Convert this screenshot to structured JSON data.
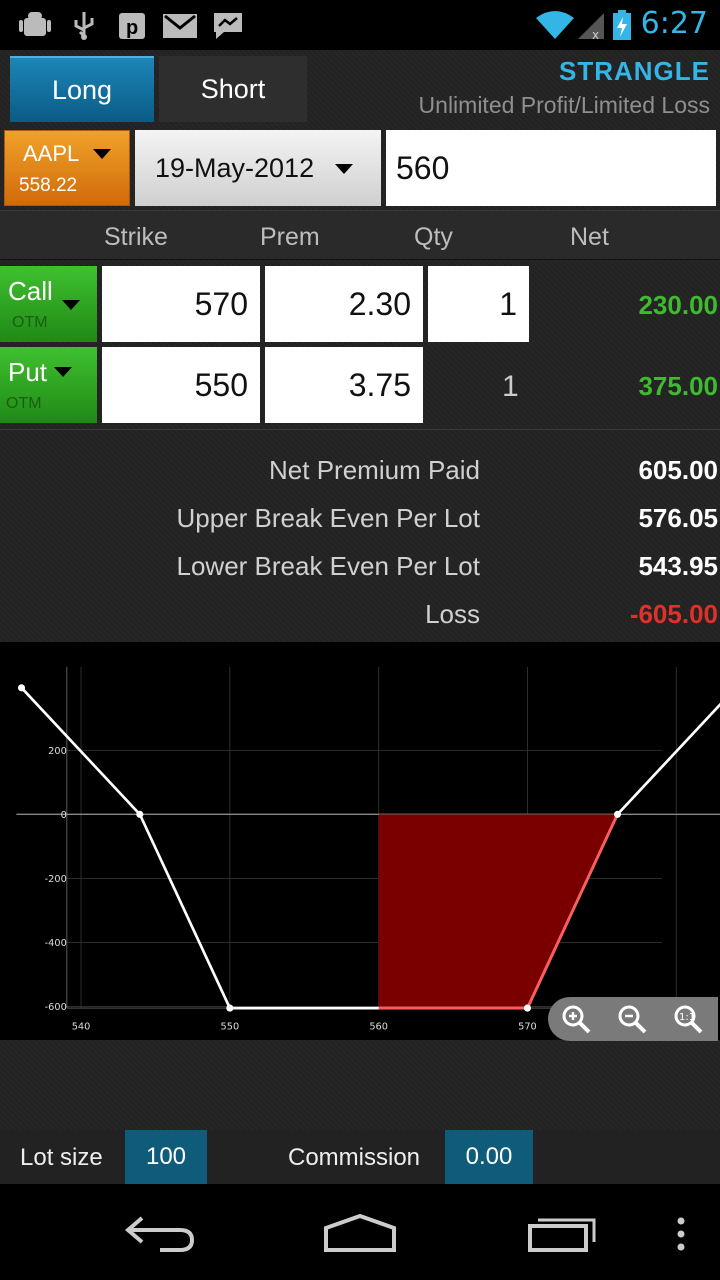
{
  "statusbar": {
    "time": "6:27",
    "icons": [
      "android-debug-icon",
      "usb-icon",
      "pushbullet-icon",
      "gmail-icon",
      "messenger-icon",
      "wifi-icon",
      "signal-icon",
      "battery-charging-icon"
    ]
  },
  "tabs": [
    {
      "label": "Long",
      "selected": true
    },
    {
      "label": "Short",
      "selected": false
    }
  ],
  "strategy": {
    "name": "STRANGLE",
    "description": "Unlimited Profit/Limited Loss"
  },
  "symbol": {
    "ticker": "AAPL",
    "price": "558.22"
  },
  "expiry": "19-May-2012",
  "underlying_price": "560",
  "columns": [
    "Strike",
    "Prem",
    "Qty",
    "Net"
  ],
  "legs": [
    {
      "type": "Call",
      "moneyness": "OTM",
      "strike": "570",
      "premium": "2.30",
      "qty": "1",
      "net": "230.00"
    },
    {
      "type": "Put",
      "moneyness": "OTM",
      "strike": "550",
      "premium": "3.75",
      "qty": "1",
      "net": "375.00"
    }
  ],
  "summary": [
    {
      "label": "Net Premium Paid",
      "value": "605.00"
    },
    {
      "label": "Upper Break Even Per Lot",
      "value": "576.05"
    },
    {
      "label": "Lower Break Even Per Lot",
      "value": "543.95"
    },
    {
      "label": "Loss",
      "value": "-605.00"
    }
  ],
  "colors": {
    "accent": "#33b5e5",
    "profit": "#3dba2e",
    "loss": "#e0302a",
    "loss_fill": "#7a0000"
  },
  "chart_data": {
    "type": "line",
    "x": [
      536,
      543.95,
      550,
      570,
      576.05,
      584
    ],
    "y": [
      395,
      0,
      -605,
      -605,
      0,
      395
    ],
    "xticks": [
      "540",
      "550",
      "560",
      "570",
      "580"
    ],
    "yticks": [
      "200",
      "0",
      "-200",
      "-400",
      "-600"
    ],
    "xlim": [
      535,
      585
    ],
    "ylim": [
      -650,
      420
    ],
    "highlight_region": {
      "from_x": 560,
      "to_x": 576.05
    },
    "grid": true
  },
  "zoom": [
    "zoom-in-icon",
    "zoom-out-icon",
    "zoom-reset-icon"
  ],
  "footer": {
    "lot_size_label": "Lot size",
    "lot_size_value": "100",
    "commission_label": "Commission",
    "commission_value": "0.00"
  },
  "navbar": [
    "back-icon",
    "home-icon",
    "recent-apps-icon",
    "overflow-menu-icon"
  ]
}
